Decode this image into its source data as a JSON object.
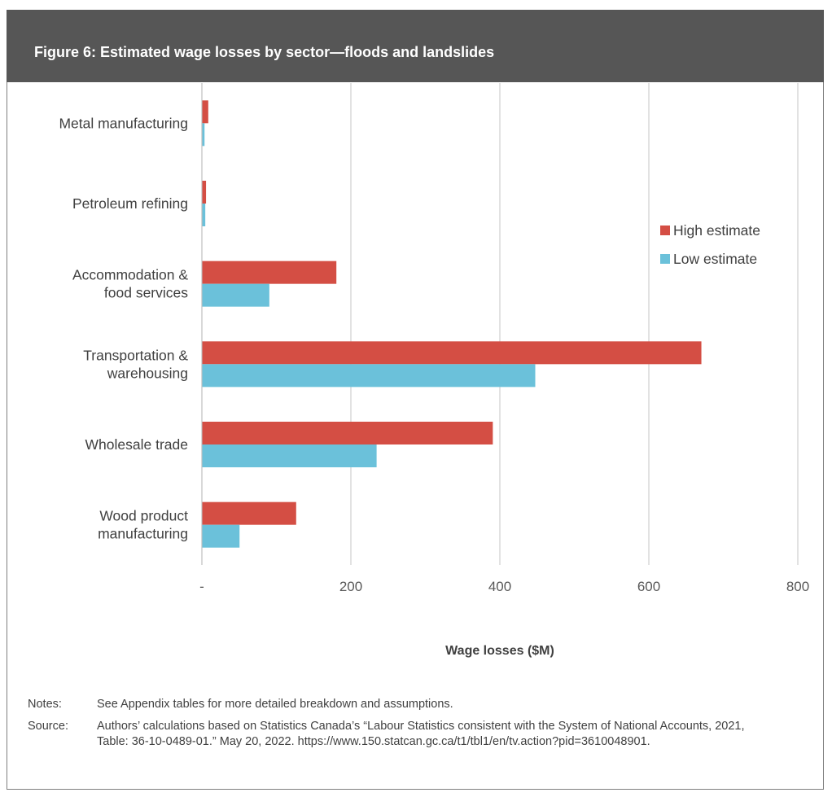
{
  "header": {
    "title": "Figure 6: Estimated wage losses by sector—floods and landslides"
  },
  "chart_data": {
    "type": "bar",
    "orientation": "horizontal",
    "categories": [
      "Metal manufacturing",
      "Petroleum refining",
      "Accommodation & food services",
      "Transportation & warehousing",
      "Wholesale trade",
      "Wood product manufacturing"
    ],
    "category_lines": [
      [
        "Metal manufacturing"
      ],
      [
        "Petroleum refining"
      ],
      [
        "Accommodation &",
        "food services"
      ],
      [
        "Transportation &",
        "warehousing"
      ],
      [
        "Wholesale trade"
      ],
      [
        "Wood product",
        "manufacturing"
      ]
    ],
    "series": [
      {
        "name": "High estimate",
        "color": "#d44e44",
        "values": [
          8,
          5,
          180,
          670,
          390,
          126
        ]
      },
      {
        "name": "Low estimate",
        "color": "#6bc1da",
        "values": [
          3,
          4,
          90,
          447,
          234,
          50
        ]
      }
    ],
    "xlabel": "Wage losses ($M)",
    "ylabel": "",
    "xlim": [
      0,
      800
    ],
    "xticks": [
      0,
      200,
      400,
      600,
      800
    ],
    "xtick_labels": [
      "-",
      "200",
      "400",
      "600",
      "800"
    ],
    "grid": true,
    "legend_position": "right"
  },
  "notes": {
    "notes_label": "Notes:",
    "notes_text": "See Appendix tables for more detailed breakdown and assumptions.",
    "source_label": "Source:",
    "source_text": "Authors’ calculations based on Statistics Canada’s “Labour Statistics consistent with the System of National Accounts, 2021, Table: 36-10-0489-01.” May 20, 2022. https://www.150.statcan.gc.ca/t1/tbl1/en/tv.action?pid=3610048901."
  }
}
